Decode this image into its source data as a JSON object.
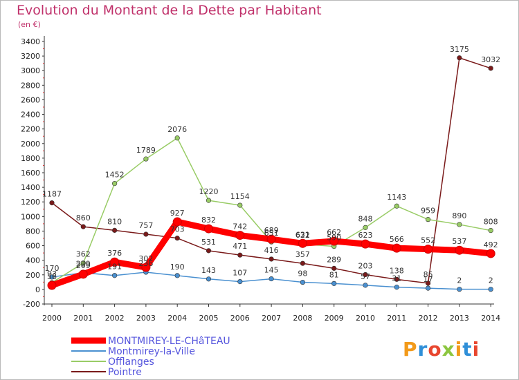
{
  "title": "Evolution du Montant de la Dette par Habitant",
  "subtitle": "(en €)",
  "logo_text": "Proxiti",
  "chart_data": {
    "type": "line",
    "title": "Evolution du Montant de la Dette par Habitant",
    "subtitle": "(en €)",
    "x": [
      2000,
      2001,
      2002,
      2003,
      2004,
      2005,
      2006,
      2007,
      2008,
      2009,
      2010,
      2011,
      2012,
      2013,
      2014
    ],
    "ylim": [
      -200,
      3400
    ],
    "yticks": [
      -200,
      0,
      200,
      400,
      600,
      800,
      1000,
      1200,
      1400,
      1600,
      1800,
      2000,
      2200,
      2400,
      2600,
      2800,
      3000,
      3200,
      3400
    ],
    "grid": false,
    "legend": "bottom-left",
    "series": [
      {
        "name": "MONTMIREY-LE-CHâTEAU",
        "color": "#ff0000",
        "values": [
          56,
          209,
          376,
          302,
          927,
          832,
          742,
          689,
          631,
          662,
          623,
          566,
          552,
          537,
          492
        ],
        "labels": [
          "56",
          "209",
          "376",
          "302",
          "927",
          "832",
          "742",
          "689",
          "631",
          "662",
          "623",
          "566",
          "552",
          "537",
          "492"
        ]
      },
      {
        "name": "Montmirey-la-Ville",
        "color": "#4a90d0",
        "values": [
          170,
          229,
          191,
          236,
          190,
          143,
          107,
          145,
          98,
          81,
          57,
          31,
          17,
          2,
          2
        ],
        "labels": [
          "170",
          "229",
          "191",
          "236",
          "190",
          "143",
          "107",
          "145",
          "98",
          "81",
          "57",
          "31",
          "17",
          "2",
          "2"
        ]
      },
      {
        "name": "Offlanges",
        "color": "#99cc66",
        "values": [
          93,
          362,
          1452,
          1789,
          2076,
          1220,
          1154,
          651,
          622,
          590,
          848,
          1143,
          959,
          890,
          808
        ],
        "labels": [
          "93",
          "362",
          "1452",
          "1789",
          "2076",
          "1220",
          "1154",
          "651",
          "622",
          "590",
          "848",
          "1143",
          "959",
          "890",
          "808"
        ]
      },
      {
        "name": "Pointre",
        "color": "#7a1a1a",
        "values": [
          1187,
          860,
          810,
          757,
          703,
          531,
          471,
          416,
          357,
          289,
          203,
          138,
          85,
          3175,
          3032
        ],
        "labels": [
          "1187",
          "860",
          "810",
          "757",
          "703",
          "531",
          "471",
          "416",
          "357",
          "289",
          "203",
          "138",
          "85",
          "3175",
          "3032"
        ]
      }
    ]
  }
}
